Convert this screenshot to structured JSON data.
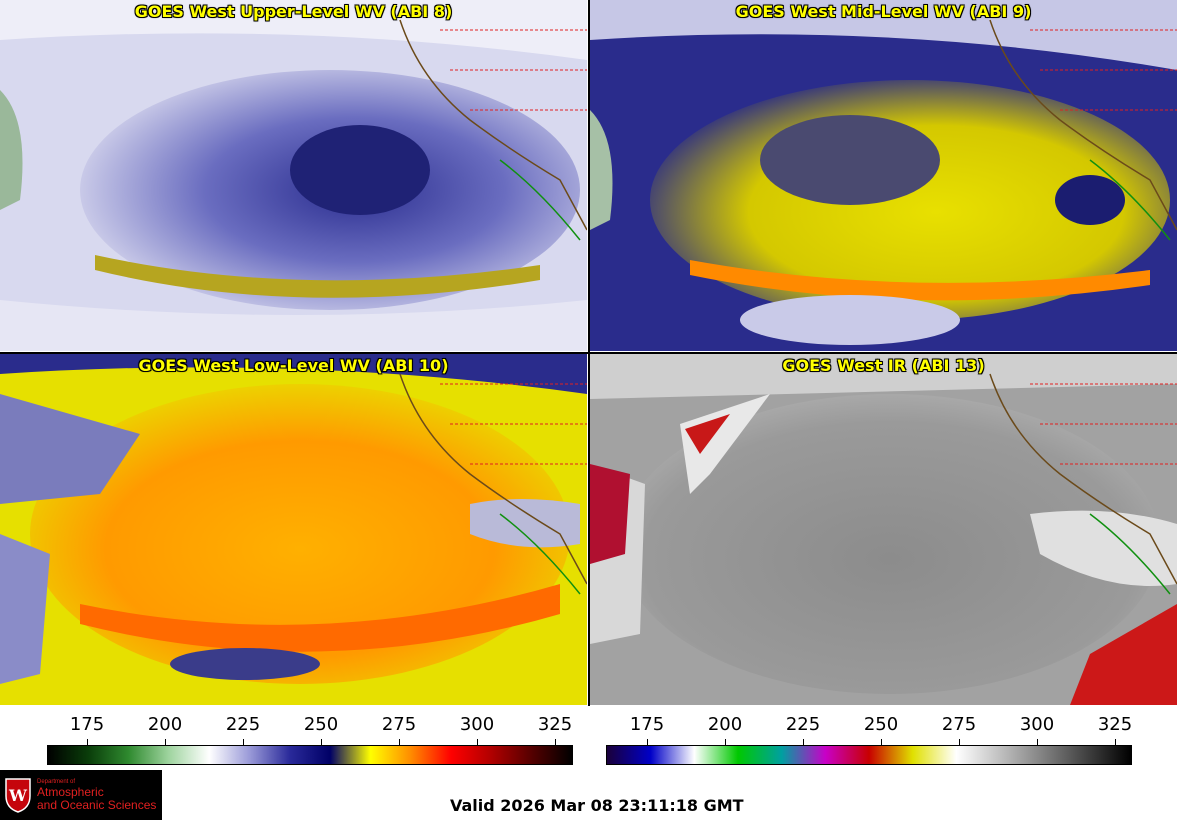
{
  "panels": [
    {
      "title": "GOES West Upper-Level WV (ABI 8)",
      "palette": "wv"
    },
    {
      "title": "GOES West Mid-Level WV (ABI 9)",
      "palette": "wv-yellow"
    },
    {
      "title": "GOES West Low-Level WV (ABI 10)",
      "palette": "wv-orange"
    },
    {
      "title": "GOES West IR (ABI 13)",
      "palette": "ir-gray"
    }
  ],
  "colorbar_left": {
    "ticks": [
      "175",
      "200",
      "225",
      "250",
      "275",
      "300",
      "325"
    ],
    "stops": [
      "#000000",
      "#0a3d0a",
      "#2f8a2f",
      "#9fd49f",
      "#ffffff",
      "#9a9ad8",
      "#2a2a9a",
      "#000066",
      "#ffff00",
      "#ff8c00",
      "#ff0000",
      "#b00000",
      "#550000",
      "#000000"
    ]
  },
  "colorbar_right": {
    "ticks": [
      "175",
      "200",
      "225",
      "250",
      "275",
      "300",
      "325"
    ],
    "stops": [
      "#1a003a",
      "#0000c8",
      "#ffffff",
      "#00c800",
      "#00a0a0",
      "#c800c8",
      "#c80000",
      "#e0e000",
      "#ffffff",
      "#c0c0c0",
      "#808080",
      "#404040",
      "#000000"
    ]
  },
  "logo": {
    "small": "Department of",
    "line1": "Atmospheric",
    "line2": "and Oceanic Sciences"
  },
  "valid_text": "Valid 2026 Mar 08 23:11:18 GMT"
}
